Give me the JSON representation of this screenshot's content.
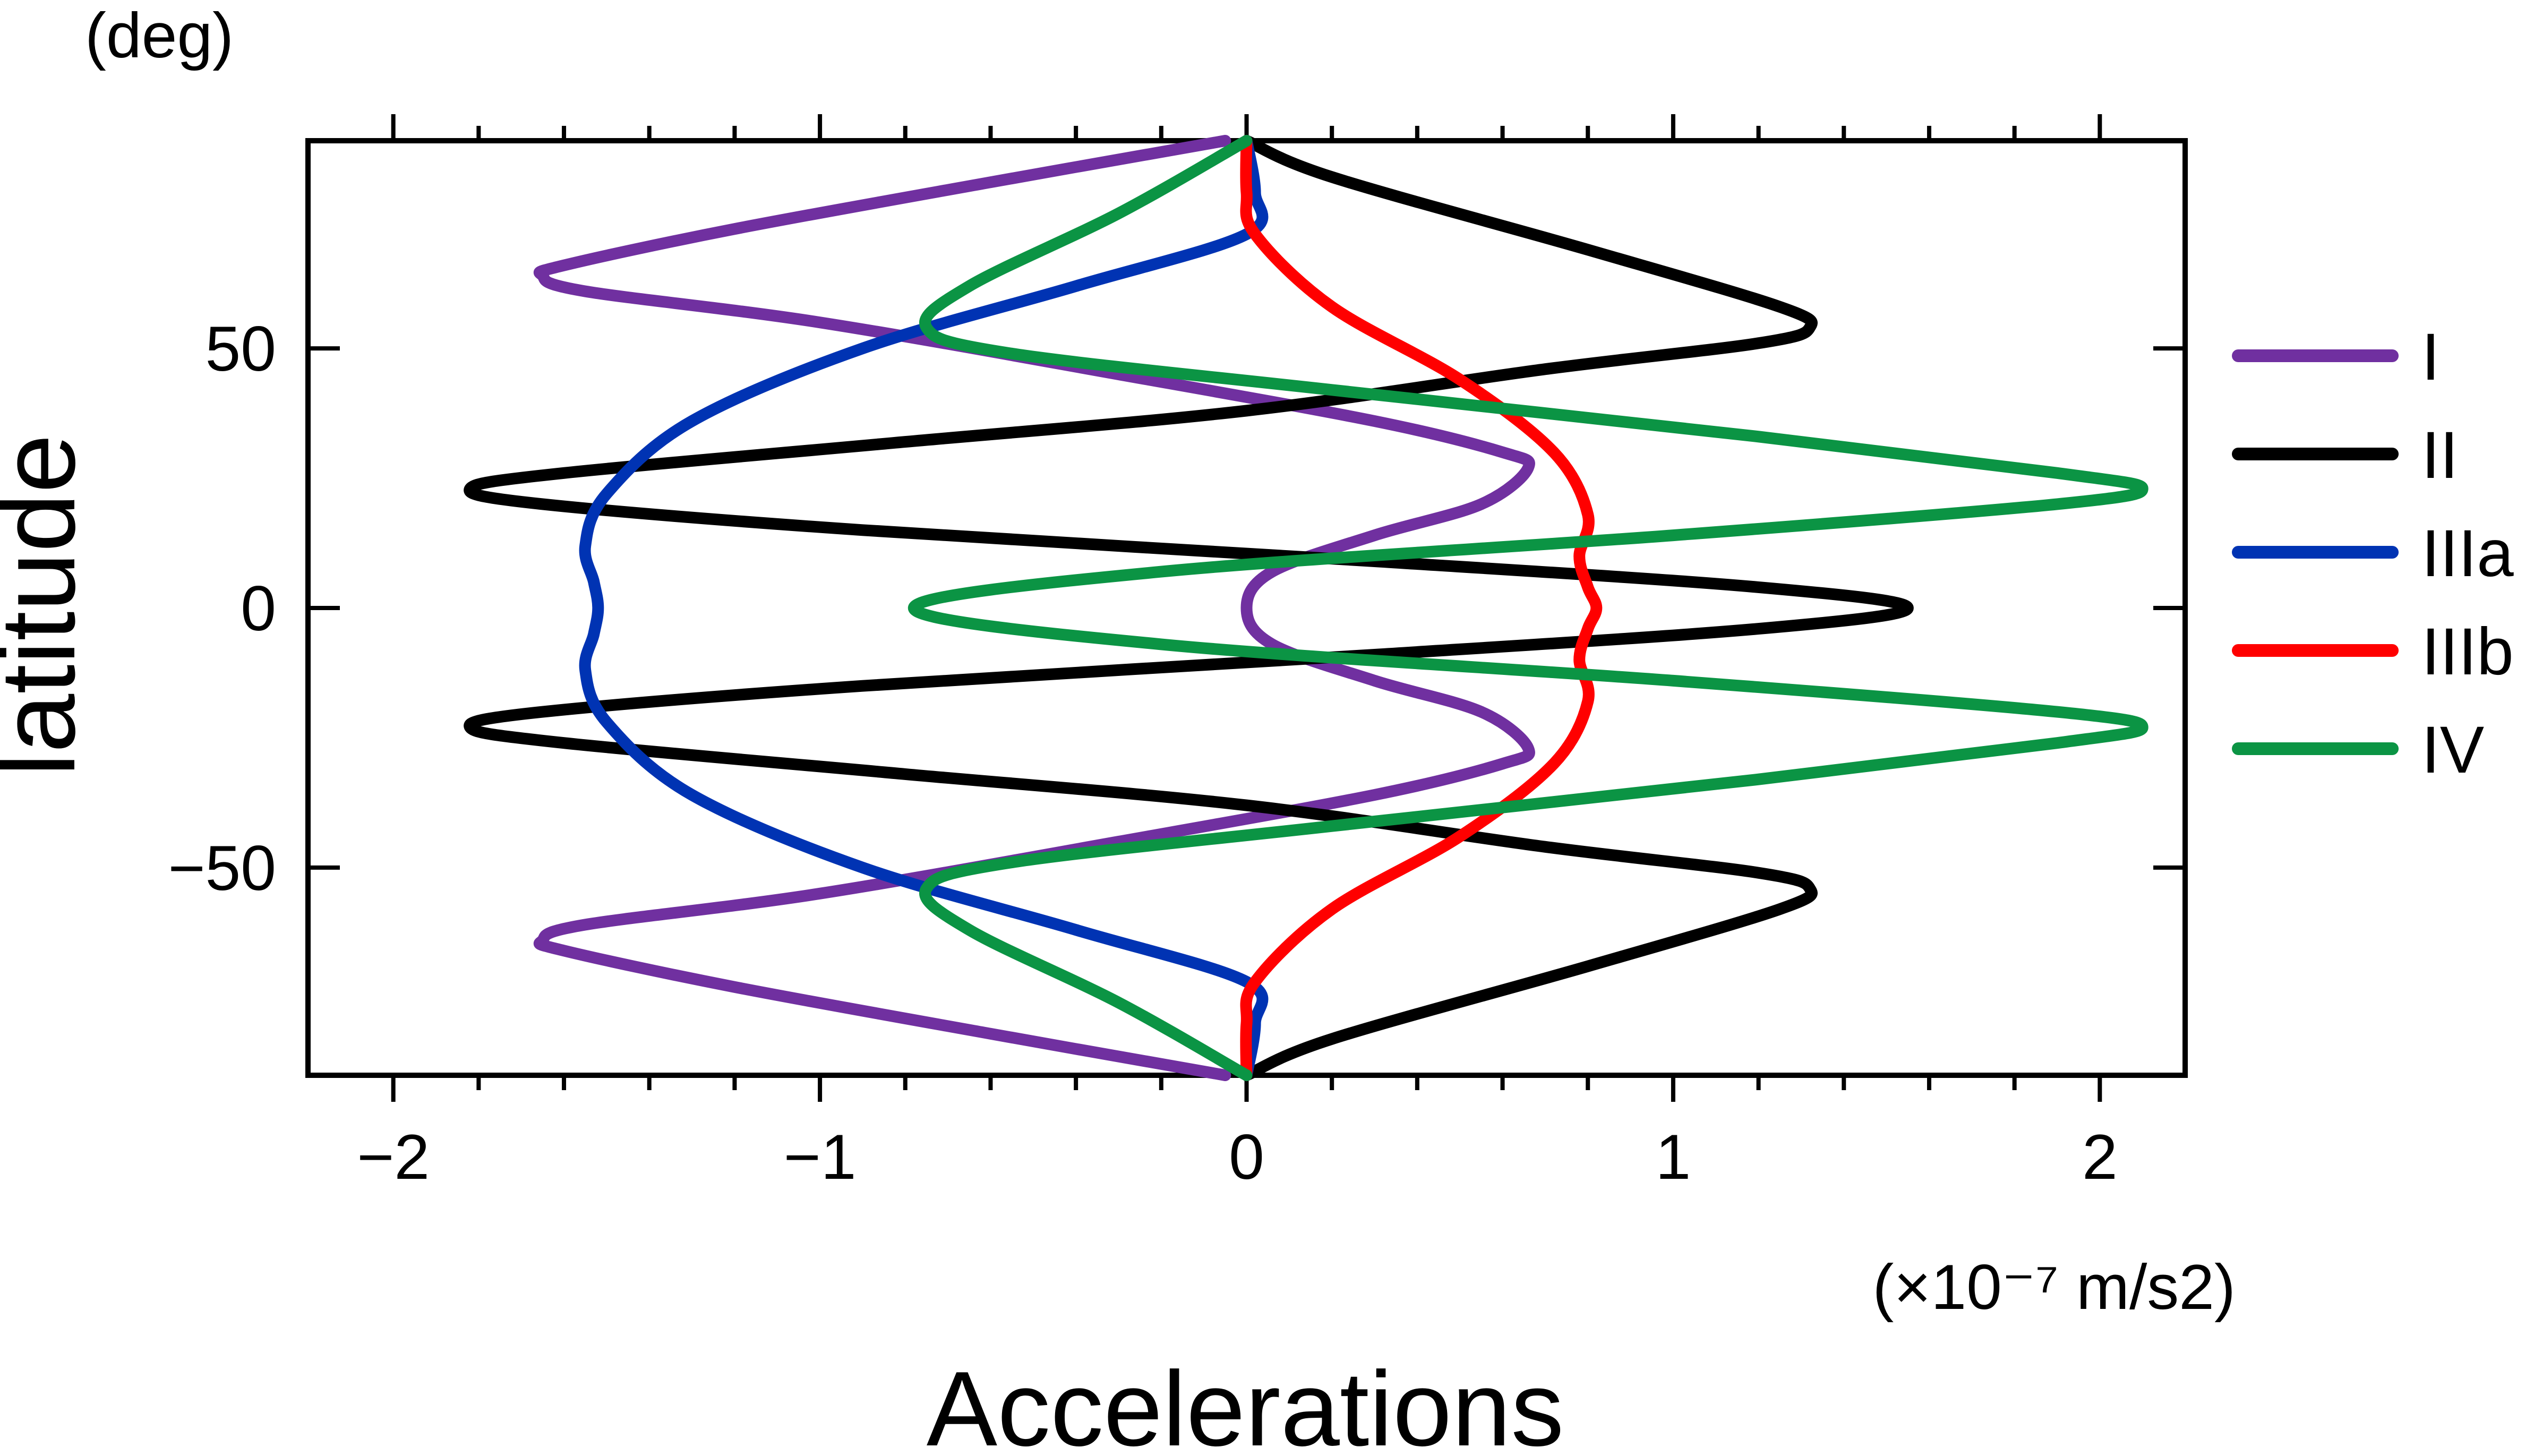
{
  "chart_data": {
    "type": "line",
    "title": "",
    "xlabel": "Accelerations",
    "ylabel": "latitude",
    "x_unit": "(×10⁻⁷ m/s2)",
    "y_unit": "(deg)",
    "xlim": [
      -2.2,
      2.2
    ],
    "ylim": [
      -90,
      90
    ],
    "x_ticks": [
      -2,
      -1,
      0,
      1,
      2
    ],
    "x_tick_labels": [
      "−2",
      "−1",
      "0",
      "1",
      "2"
    ],
    "y_ticks": [
      -50,
      0,
      50
    ],
    "y_tick_labels": [
      "−50",
      "0",
      "50"
    ],
    "grid": false,
    "legend_position": "right",
    "series": [
      {
        "name": "I",
        "color": "#7030a0",
        "points": [
          [
            -0.05,
            -90
          ],
          [
            -0.6,
            -82
          ],
          [
            -1.2,
            -73
          ],
          [
            -1.6,
            -66
          ],
          [
            -1.65,
            -64
          ],
          [
            -1.55,
            -61
          ],
          [
            -1.0,
            -55
          ],
          [
            -0.3,
            -45
          ],
          [
            0.3,
            -36
          ],
          [
            0.6,
            -30
          ],
          [
            0.66,
            -27
          ],
          [
            0.55,
            -20
          ],
          [
            0.3,
            -14
          ],
          [
            0.06,
            -7
          ],
          [
            0.0,
            0
          ],
          [
            0.06,
            7
          ],
          [
            0.3,
            14
          ],
          [
            0.55,
            20
          ],
          [
            0.66,
            27
          ],
          [
            0.6,
            30
          ],
          [
            0.3,
            36
          ],
          [
            -0.3,
            45
          ],
          [
            -1.0,
            55
          ],
          [
            -1.55,
            61
          ],
          [
            -1.65,
            64
          ],
          [
            -1.6,
            66
          ],
          [
            -1.2,
            73
          ],
          [
            -0.6,
            82
          ],
          [
            -0.05,
            90
          ]
        ]
      },
      {
        "name": "II",
        "color": "#000000",
        "points": [
          [
            0.0,
            -90
          ],
          [
            0.2,
            -83
          ],
          [
            0.8,
            -69
          ],
          [
            1.25,
            -58
          ],
          [
            1.32,
            -54
          ],
          [
            1.2,
            -51
          ],
          [
            0.7,
            -46
          ],
          [
            0.0,
            -38
          ],
          [
            -0.8,
            -32
          ],
          [
            -1.6,
            -26
          ],
          [
            -1.82,
            -23
          ],
          [
            -1.65,
            -20
          ],
          [
            -0.9,
            -15
          ],
          [
            0.3,
            -9
          ],
          [
            1.2,
            -4
          ],
          [
            1.55,
            0
          ],
          [
            1.2,
            4
          ],
          [
            0.3,
            9
          ],
          [
            -0.9,
            15
          ],
          [
            -1.65,
            20
          ],
          [
            -1.82,
            23
          ],
          [
            -1.6,
            26
          ],
          [
            -0.8,
            32
          ],
          [
            0.0,
            38
          ],
          [
            0.7,
            46
          ],
          [
            1.2,
            51
          ],
          [
            1.32,
            54
          ],
          [
            1.25,
            58
          ],
          [
            0.8,
            69
          ],
          [
            0.2,
            83
          ],
          [
            0.0,
            90
          ]
        ]
      },
      {
        "name": "IIIa",
        "color": "#0033b3",
        "points": [
          [
            0.0,
            -90
          ],
          [
            0.02,
            -80
          ],
          [
            0.0,
            -72
          ],
          [
            -0.4,
            -62
          ],
          [
            -0.9,
            -50
          ],
          [
            -1.3,
            -36
          ],
          [
            -1.5,
            -22
          ],
          [
            -1.55,
            -12
          ],
          [
            -1.53,
            -5
          ],
          [
            -1.52,
            0
          ],
          [
            -1.53,
            5
          ],
          [
            -1.55,
            12
          ],
          [
            -1.5,
            22
          ],
          [
            -1.3,
            36
          ],
          [
            -0.9,
            50
          ],
          [
            -0.4,
            62
          ],
          [
            0.0,
            72
          ],
          [
            0.02,
            80
          ],
          [
            0.0,
            90
          ]
        ]
      },
      {
        "name": "IIIb",
        "color": "#ff0000",
        "points": [
          [
            0.0,
            -90
          ],
          [
            0.0,
            -80
          ],
          [
            0.02,
            -72
          ],
          [
            0.2,
            -58
          ],
          [
            0.5,
            -44
          ],
          [
            0.72,
            -30
          ],
          [
            0.8,
            -18
          ],
          [
            0.78,
            -10
          ],
          [
            0.8,
            -4
          ],
          [
            0.82,
            0
          ],
          [
            0.8,
            4
          ],
          [
            0.78,
            10
          ],
          [
            0.8,
            18
          ],
          [
            0.72,
            30
          ],
          [
            0.5,
            44
          ],
          [
            0.2,
            58
          ],
          [
            0.02,
            72
          ],
          [
            0.0,
            80
          ],
          [
            0.0,
            90
          ]
        ]
      },
      {
        "name": "IV",
        "color": "#0b9444",
        "points": [
          [
            0.0,
            -90
          ],
          [
            -0.3,
            -76
          ],
          [
            -0.65,
            -62
          ],
          [
            -0.75,
            -54
          ],
          [
            -0.55,
            -49
          ],
          [
            0.2,
            -42
          ],
          [
            1.2,
            -33
          ],
          [
            1.9,
            -26
          ],
          [
            2.1,
            -23
          ],
          [
            1.9,
            -20
          ],
          [
            1.0,
            -14
          ],
          [
            -0.2,
            -7
          ],
          [
            -0.78,
            0
          ],
          [
            -0.2,
            7
          ],
          [
            1.0,
            14
          ],
          [
            1.9,
            20
          ],
          [
            2.1,
            23
          ],
          [
            1.9,
            26
          ],
          [
            1.2,
            33
          ],
          [
            0.2,
            42
          ],
          [
            -0.55,
            49
          ],
          [
            -0.75,
            54
          ],
          [
            -0.65,
            62
          ],
          [
            -0.3,
            76
          ],
          [
            0.0,
            90
          ]
        ]
      }
    ]
  }
}
